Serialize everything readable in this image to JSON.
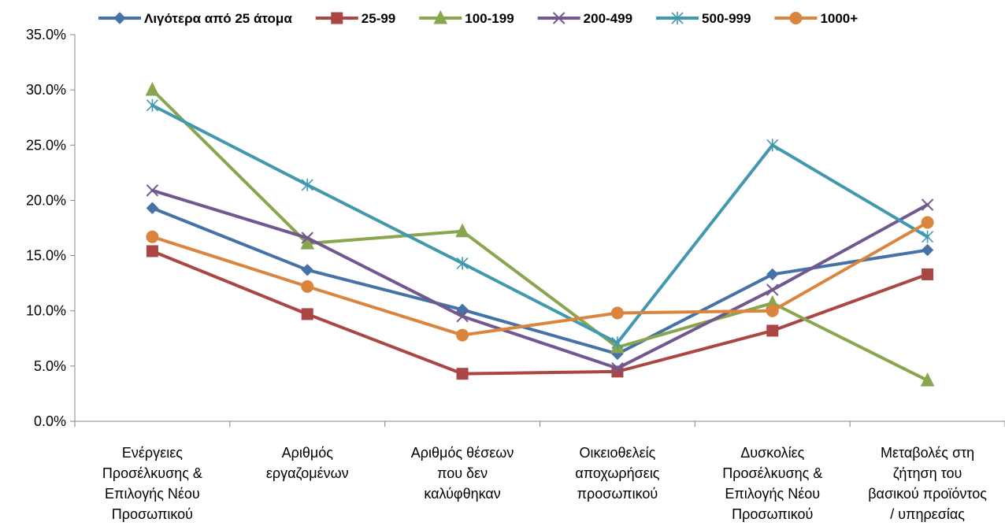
{
  "chart_data": {
    "type": "line",
    "categories": [
      [
        "Ενέργειες",
        "Προσέλκυσης &",
        "Επιλογής Νέου",
        "Προσωπικού"
      ],
      [
        "Αριθμός",
        "εργαζομένων"
      ],
      [
        "Αριθμός θέσεων",
        "που δεν",
        "καλύφθηκαν"
      ],
      [
        "Οικειοθελείς",
        "αποχωρήσεις",
        "προσωπικού"
      ],
      [
        "Δυσκολίες",
        "Προσέλκυσης &",
        "Επιλογής Νέου",
        "Προσωπικού"
      ],
      [
        "Μεταβολές στη",
        "ζήτηση του",
        "βασικού προϊόντος",
        "/ υπηρεσίας"
      ]
    ],
    "ylim": [
      0,
      35
    ],
    "yticks": [
      0,
      5,
      10,
      15,
      20,
      25,
      30,
      35
    ],
    "ytick_labels": [
      "0.0%",
      "5.0%",
      "10.0%",
      "15.0%",
      "20.0%",
      "25.0%",
      "30.0%",
      "35.0%"
    ],
    "grid": false,
    "legend_position": "top",
    "series": [
      {
        "name": "Λιγότερα από 25 άτομα",
        "color": "#4572A7",
        "marker": "diamond",
        "values": [
          19.3,
          13.7,
          10.1,
          6.1,
          13.3,
          15.5
        ]
      },
      {
        "name": "25-99",
        "color": "#AA4643",
        "marker": "square",
        "values": [
          15.4,
          9.7,
          4.3,
          4.5,
          8.2,
          13.3
        ]
      },
      {
        "name": "100-199",
        "color": "#89A54E",
        "marker": "triangle",
        "values": [
          30.0,
          16.1,
          17.2,
          6.7,
          10.7,
          3.7
        ]
      },
      {
        "name": "200-499",
        "color": "#71588F",
        "marker": "x",
        "values": [
          20.9,
          16.6,
          9.5,
          4.8,
          11.9,
          19.6
        ]
      },
      {
        "name": "500-999",
        "color": "#4198AF",
        "marker": "star",
        "values": [
          28.6,
          21.4,
          14.3,
          7.1,
          25.0,
          16.7
        ]
      },
      {
        "name": "1000+",
        "color": "#DB843D",
        "marker": "circle",
        "values": [
          16.7,
          12.2,
          7.8,
          9.8,
          10.0,
          18.0
        ]
      }
    ]
  }
}
